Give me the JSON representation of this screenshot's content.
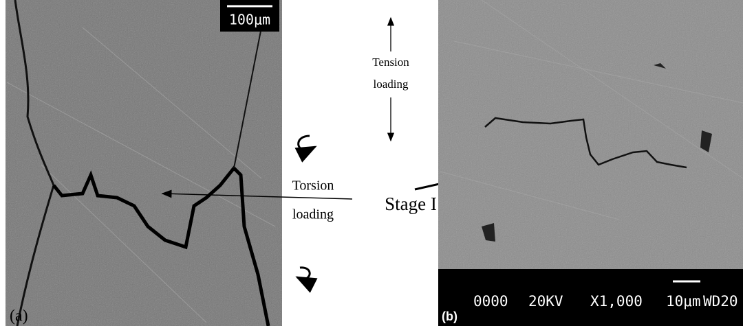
{
  "figure": {
    "panel_a": {
      "label": "(a)",
      "scale_bar": "100μm"
    },
    "center": {
      "tension_label": [
        "Tension",
        "loading"
      ],
      "torsion_label": [
        "Torsion",
        "loading"
      ],
      "stage_label": "Stage I"
    },
    "panel_b": {
      "label": "(b)",
      "info_bar": [
        "0000",
        "20KV",
        "X1,000",
        "10μm",
        "WD20"
      ]
    }
  }
}
